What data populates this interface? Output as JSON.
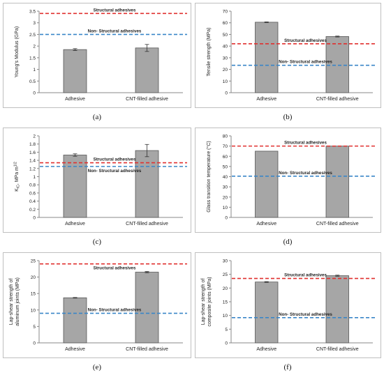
{
  "colors": {
    "bar_fill": "#a6a6a6",
    "bar_stroke": "#555555",
    "structural_line": "#e0302f",
    "nonstructural_line": "#3a86c8",
    "axis": "#888888",
    "frame": "#bfbfbf",
    "text": "#222222"
  },
  "chart_data": [
    {
      "type": "bar",
      "panel_label": "(a)",
      "categories": [
        "Adhesive",
        "CNT-filled adhesive"
      ],
      "values": [
        1.85,
        1.92
      ],
      "errors": [
        0.04,
        0.15
      ],
      "ylabel": "Young's Modulus (GPa)",
      "ylim": [
        0,
        3.5
      ],
      "yticks": [
        0,
        0.5,
        1,
        1.5,
        2,
        2.5,
        3,
        3.5
      ],
      "ytick_labels": [
        "0",
        "0.5",
        "1",
        "1.5",
        "2",
        "2.5",
        "3",
        "3.5"
      ],
      "reference_lines": [
        {
          "name": "Structural adhesives",
          "value": 3.4,
          "style": "structural",
          "label_pos": "above"
        },
        {
          "name": "Non- Structural adhesives",
          "value": 2.5,
          "style": "nonstructural",
          "label_pos": "above"
        }
      ]
    },
    {
      "type": "bar",
      "panel_label": "(b)",
      "categories": [
        "Adhesive",
        "CNT-filled adhesive"
      ],
      "values": [
        60.5,
        48.2
      ],
      "errors": [
        0.3,
        0.4
      ],
      "ylabel": "Tensile strength (MPa)",
      "ylim": [
        0,
        70
      ],
      "yticks": [
        0,
        10,
        20,
        30,
        40,
        50,
        60,
        70
      ],
      "ytick_labels": [
        "0",
        "10",
        "20",
        "30",
        "40",
        "50",
        "60",
        "70"
      ],
      "reference_lines": [
        {
          "name": "Structural adhesives",
          "value": 42,
          "style": "structural",
          "label_pos": "above"
        },
        {
          "name": "Non- Structural adhesives",
          "value": 23.5,
          "style": "nonstructural",
          "label_pos": "above"
        }
      ]
    },
    {
      "type": "bar",
      "panel_label": "(c)",
      "categories": [
        "Adhesive",
        "CNT-filled adhesive"
      ],
      "values": [
        1.53,
        1.64
      ],
      "errors": [
        0.03,
        0.15
      ],
      "ylabel": "K",
      "ylabel_sub": "IC",
      "ylabel_rest": ", MPa m",
      "ylabel_sup": "1/2",
      "ylim": [
        0,
        2
      ],
      "yticks": [
        0,
        0.2,
        0.4,
        0.6,
        0.8,
        1,
        1.2,
        1.4,
        1.6,
        1.8,
        2
      ],
      "ytick_labels": [
        "0",
        "0.2",
        "0.4",
        "0.6",
        "0.8",
        "1",
        "1.2",
        "1.4",
        "1.6",
        "1.8",
        "2"
      ],
      "reference_lines": [
        {
          "name": "Structural adhesives",
          "value": 1.34,
          "style": "structural",
          "label_pos": "above"
        },
        {
          "name": "Non- Structural adhesives",
          "value": 1.25,
          "style": "nonstructural",
          "label_pos": "below"
        }
      ]
    },
    {
      "type": "bar",
      "panel_label": "(d)",
      "categories": [
        "Adhesive",
        "CNT-filled adhesive"
      ],
      "values": [
        65,
        70
      ],
      "errors": [
        0,
        0
      ],
      "ylabel": "Glass transition temperature (°C)",
      "ylim": [
        0,
        80
      ],
      "yticks": [
        0,
        10,
        20,
        30,
        40,
        50,
        60,
        70,
        80
      ],
      "ytick_labels": [
        "0",
        "10",
        "20",
        "30",
        "40",
        "50",
        "60",
        "70",
        "80"
      ],
      "reference_lines": [
        {
          "name": "Structural adhesives",
          "value": 70,
          "style": "structural",
          "label_pos": "above"
        },
        {
          "name": "Non- Structural adhesives",
          "value": 40.5,
          "style": "nonstructural",
          "label_pos": "above"
        }
      ]
    },
    {
      "type": "bar",
      "panel_label": "(e)",
      "categories": [
        "Adhesive",
        "CNT-filled adhesive"
      ],
      "values": [
        13.7,
        21.5
      ],
      "errors": [
        0.1,
        0.2
      ],
      "ylabel": "Lap-shear strength of aluminum joints (MPa)",
      "ylim": [
        0,
        25
      ],
      "yticks": [
        0,
        5,
        10,
        15,
        20,
        25
      ],
      "ytick_labels": [
        "0",
        "5",
        "10",
        "15",
        "20",
        "25"
      ],
      "reference_lines": [
        {
          "name": "Structural adhesives",
          "value": 24,
          "style": "structural",
          "label_pos": "below"
        },
        {
          "name": "Non- Structural adhesives",
          "value": 9,
          "style": "nonstructural",
          "label_pos": "above"
        }
      ]
    },
    {
      "type": "bar",
      "panel_label": "(f)",
      "categories": [
        "Adhesive",
        "CNT-filled adhesive"
      ],
      "values": [
        22.2,
        24.5
      ],
      "errors": [
        0.15,
        0.2
      ],
      "ylabel": "Lap-shear strength of composite joints (MPa)",
      "ylim": [
        0,
        30
      ],
      "yticks": [
        0,
        5,
        10,
        15,
        20,
        25,
        30
      ],
      "ytick_labels": [
        "0",
        "5",
        "10",
        "15",
        "20",
        "25",
        "30"
      ],
      "reference_lines": [
        {
          "name": "Structural adhesives",
          "value": 23.5,
          "style": "structural",
          "label_pos": "above"
        },
        {
          "name": "Non- Structural adhesives",
          "value": 9.2,
          "style": "nonstructural",
          "label_pos": "above"
        }
      ]
    }
  ]
}
